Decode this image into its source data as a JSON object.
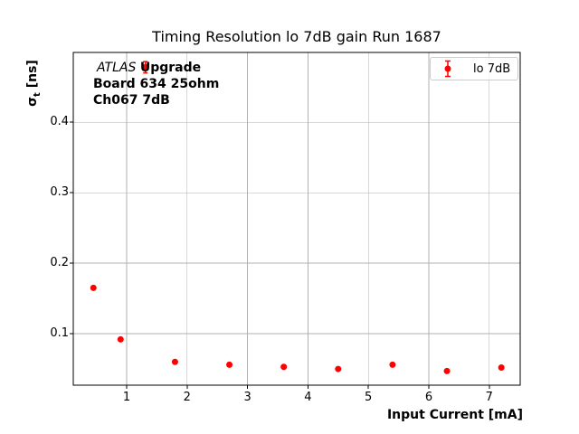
{
  "figure": {
    "background": "#ffffff",
    "annotation": {
      "brand": "ATLAS",
      "brand_suffix": "Upgrade",
      "line2": "Board 634 25ohm",
      "line3": "Ch067 7dB"
    },
    "ylabel_parts": {
      "sigma": "σ",
      "sub": "t",
      "units": " [ns]"
    }
  },
  "chart_data": {
    "type": "scatter",
    "title": "Timing Resolution lo 7dB gain Run 1687",
    "xlabel": "Input Current [mA]",
    "ylabel": "σ_t [ns]",
    "xlim": [
      0.117,
      7.512
    ],
    "ylim": [
      0.027,
      0.499
    ],
    "x_ticks": [
      1,
      2,
      3,
      4,
      5,
      6,
      7
    ],
    "y_ticks": [
      0.1,
      0.2,
      0.3,
      0.4
    ],
    "grid": true,
    "grid_color": "#b0b0b0",
    "axis_color": "#000000",
    "legend": {
      "label": "lo 7dB",
      "position": "upper right"
    },
    "series": [
      {
        "name": "lo 7dB",
        "color": "#ff0000",
        "marker": "circle",
        "x": [
          0.45,
          0.9,
          1.31,
          1.8,
          2.7,
          3.6,
          4.5,
          5.4,
          6.3,
          7.2
        ],
        "y": [
          0.165,
          0.092,
          0.478,
          0.06,
          0.056,
          0.053,
          0.05,
          0.056,
          0.047,
          0.052
        ],
        "yerr": [
          0.002,
          0.002,
          0.008,
          0.002,
          0.002,
          0.002,
          0.002,
          0.002,
          0.002,
          0.002
        ]
      }
    ]
  }
}
